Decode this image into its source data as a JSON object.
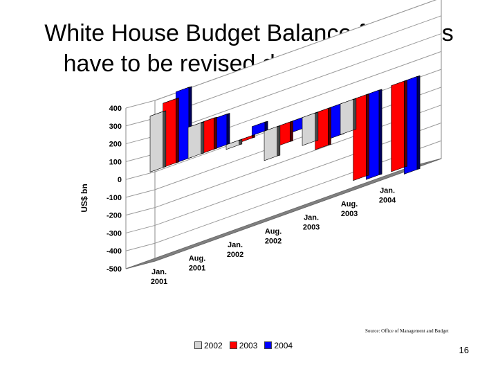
{
  "title": {
    "line1": "White House Budget Balance forecasts",
    "line2": "have to be revised down every year"
  },
  "source": "Source: Office of Management and Budget",
  "page_number": "16",
  "chart_data": {
    "type": "bar",
    "subtype": "3d-clustered",
    "ylabel": "US$ bn",
    "xlabel": "",
    "ylim": [
      -500,
      400
    ],
    "yticks": [
      "400",
      "300",
      "200",
      "100",
      "0",
      "-100",
      "-200",
      "-300",
      "-400",
      "-500"
    ],
    "grid": true,
    "legend_position": "bottom",
    "categories": [
      [
        "Jan.",
        "2001"
      ],
      [
        "Aug.",
        "2001"
      ],
      [
        "Jan.",
        "2002"
      ],
      [
        "Aug.",
        "2002"
      ],
      [
        "Jan.",
        "2003"
      ],
      [
        "Aug.",
        "2003"
      ],
      [
        "Jan.",
        "2004"
      ]
    ],
    "series": [
      {
        "name": "2002",
        "color": "#d4d4d4",
        "values": [
          313,
          174,
          -26,
          -165,
          -157,
          -172,
          null
        ]
      },
      {
        "name": "2003",
        "color": "#ff0000",
        "values": [
          359,
          175,
          -14,
          -110,
          -206,
          -455,
          -482
        ]
      },
      {
        "name": "2004",
        "color": "#0000ff",
        "values": [
          397,
          171,
          50,
          -62,
          -173,
          -475,
          -521
        ]
      }
    ]
  }
}
